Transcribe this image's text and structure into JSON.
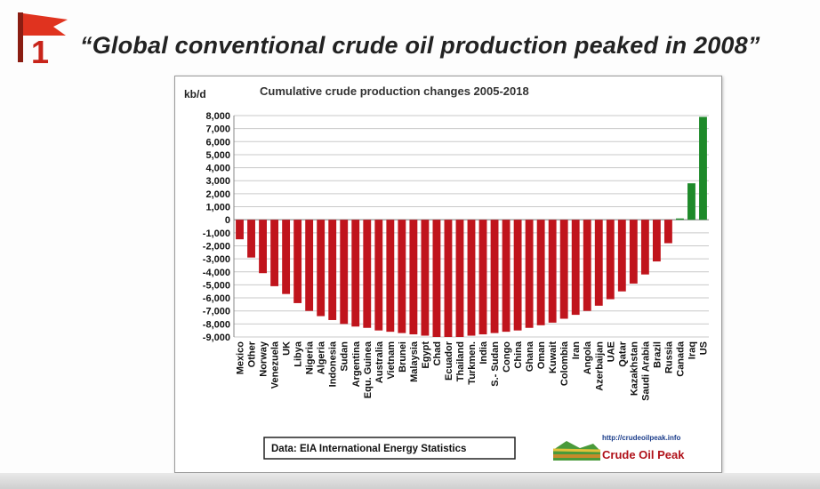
{
  "slide": {
    "number": "1",
    "title": "“Global conventional crude oil production peaked in 2008”"
  },
  "chart_data": {
    "type": "bar",
    "title": "Cumulative crude production changes 2005-2018",
    "unit_label": "kb/d",
    "ylim": [
      -9000,
      8000
    ],
    "yticks": [
      "8,000",
      "7,000",
      "6,000",
      "5,000",
      "4,000",
      "3,000",
      "2,000",
      "1,000",
      "0",
      "-1,000",
      "-2,000",
      "-3,000",
      "-4,000",
      "-5,000",
      "-6,000",
      "-7,000",
      "-8,000",
      "-9,000"
    ],
    "ytick_values": [
      8000,
      7000,
      6000,
      5000,
      4000,
      3000,
      2000,
      1000,
      0,
      -1000,
      -2000,
      -3000,
      -4000,
      -5000,
      -6000,
      -7000,
      -8000,
      -9000
    ],
    "grid": true,
    "categories": [
      "Mexico",
      "Other",
      "Norway",
      "Venezuela",
      "UK",
      "Libya",
      "Nigeria",
      "Algeria",
      "Indonesia",
      "Sudan",
      "Argentina",
      "Equ. Guinea",
      "Australia",
      "Vietnam",
      "Brunei",
      "Malaysia",
      "Egypt",
      "Chad",
      "Ecuador",
      "Thailand",
      "Turkmen.",
      "India",
      "S.- Sudan",
      "Congo",
      "China",
      "Ghana",
      "Oman",
      "Kuwait",
      "Colombia",
      "Iran",
      "Angola",
      "Azerbaijan",
      "UAE",
      "Qatar",
      "Kazakhstan",
      "Saudi Arabia",
      "Brazil",
      "Russia",
      "Canada",
      "Iraq",
      "US"
    ],
    "values": [
      -1500,
      -2900,
      -4100,
      -5100,
      -5700,
      -6400,
      -7000,
      -7400,
      -7700,
      -8000,
      -8200,
      -8300,
      -8500,
      -8600,
      -8700,
      -8800,
      -8900,
      -9000,
      -9000,
      -9000,
      -8900,
      -8800,
      -8700,
      -8600,
      -8500,
      -8300,
      -8100,
      -7900,
      -7600,
      -7300,
      -7000,
      -6600,
      -6100,
      -5500,
      -4900,
      -4200,
      -3200,
      -1800,
      100,
      2800,
      7900
    ],
    "negative_color": "#c0141c",
    "positive_color": "#1e8a2a",
    "source_note": "Data: EIA International Energy Statistics",
    "brand": {
      "url": "http://crudeoilpeak.info",
      "name": "Crude Oil Peak"
    }
  }
}
